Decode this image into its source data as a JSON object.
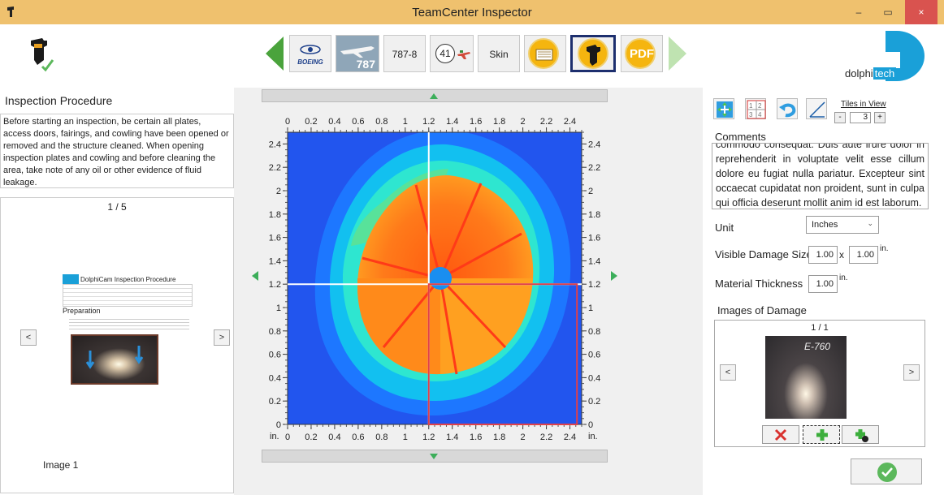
{
  "window": {
    "title": "TeamCenter Inspector",
    "minimize": "–",
    "maximize": "▭",
    "close": "×"
  },
  "toolbar": {
    "boeing_label": "BOEING",
    "model_787_label": "787",
    "variant_label": "787-8",
    "notification_count": "41",
    "section_label": "Skin",
    "pdf_label": "PDF"
  },
  "brand": {
    "name_part1": "dolphi",
    "name_part2": "tech",
    "accent": "#1aa0d8"
  },
  "inspection": {
    "title": "Inspection Procedure",
    "text": "Before starting an inspection, be certain all plates, access doors, fairings, and cowling have been opened or removed and the structure cleaned. When opening inspection plates and cowling and before cleaning the area, take note of any oil or other evidence of fluid leakage.",
    "page_counter": "1 / 5",
    "doc_title": "DolphiCam Inspection Procedure",
    "doc_section": "Preparation",
    "image_caption": "Image 1",
    "prev": "<",
    "next": ">"
  },
  "chart_data": {
    "type": "heatmap",
    "x_ticks": [
      "0",
      "0.2",
      "0.4",
      "0.6",
      "0.8",
      "1",
      "1.2",
      "1.4",
      "1.6",
      "1.8",
      "2",
      "2.2",
      "2.4"
    ],
    "y_ticks": [
      "0",
      "0.2",
      "0.4",
      "0.6",
      "0.8",
      "1",
      "1.2",
      "1.4",
      "1.6",
      "1.8",
      "2",
      "2.2",
      "2.4"
    ],
    "xlim": [
      0,
      2.5
    ],
    "ylim": [
      0,
      2.5
    ],
    "unit_label": "in.",
    "crosshair": {
      "x": 1.2,
      "y": 1.2
    },
    "selection": {
      "x0": 1.2,
      "x1": 2.46,
      "y0": 0.0,
      "y1": 1.2
    }
  },
  "right": {
    "tiles_label": "Tiles in View",
    "tiles_minus": "-",
    "tiles_value": "3",
    "tiles_plus": "+",
    "comments_label": "Comments",
    "comments_text": "commodo consequat. Duis aute irure dolor in reprehenderit in voluptate velit esse cillum dolore eu fugiat nulla pariatur. Excepteur sint occaecat cupidatat non proident, sunt in culpa qui officia deserunt mollit anim id est laborum.",
    "unit_label": "Unit",
    "unit_value": "Inches",
    "damage_size_label": "Visible Damage Size",
    "damage_w": "1.00",
    "damage_x": "x",
    "damage_h": "1.00",
    "damage_unit": "in.",
    "thickness_label": "Material Thickness",
    "thickness_value": "1.00",
    "thickness_unit": "in.",
    "images_label": "Images of Damage",
    "images_counter": "1 / 1",
    "photo_mark": "E-760"
  },
  "colors": {
    "titlebar": "#efc16e",
    "green": "#5cb85c",
    "delete_red": "#d9322f",
    "selection_red": "#e0404a"
  }
}
